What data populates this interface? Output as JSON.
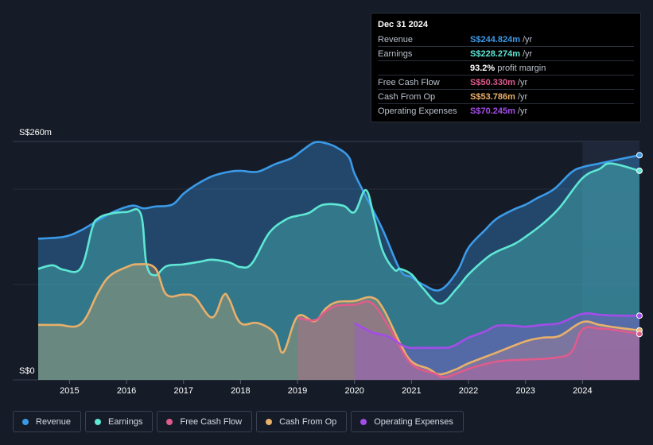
{
  "tooltip": {
    "date": "Dec 31 2024",
    "rows": [
      {
        "label": "Revenue",
        "value": "S$244.824m",
        "unit": "/yr",
        "color": "#3b9ae8"
      },
      {
        "label": "Earnings",
        "value": "S$228.274m",
        "unit": "/yr",
        "color": "#5ee7d4"
      },
      {
        "label": "",
        "value": "93.2%",
        "unit": "profit margin",
        "color": "#ffffff"
      },
      {
        "label": "Free Cash Flow",
        "value": "S$50.330m",
        "unit": "/yr",
        "color": "#e05b8c"
      },
      {
        "label": "Cash From Op",
        "value": "S$53.786m",
        "unit": "/yr",
        "color": "#e8b06a"
      },
      {
        "label": "Operating Expenses",
        "value": "S$70.245m",
        "unit": "/yr",
        "color": "#a34de8"
      }
    ]
  },
  "legend": [
    {
      "label": "Revenue",
      "color": "#3b9ae8"
    },
    {
      "label": "Earnings",
      "color": "#5ee7d4"
    },
    {
      "label": "Free Cash Flow",
      "color": "#e05b8c"
    },
    {
      "label": "Cash From Op",
      "color": "#e8b06a"
    },
    {
      "label": "Operating Expenses",
      "color": "#a34de8"
    }
  ],
  "chart_data": {
    "type": "area",
    "y_top_label": "S$260m",
    "y_bottom_label": "S$0",
    "ylim": [
      0,
      260
    ],
    "xlim": [
      2014.45,
      2025.0
    ],
    "x_ticks": [
      2015,
      2016,
      2017,
      2018,
      2019,
      2020,
      2021,
      2022,
      2023,
      2024
    ],
    "x_tick_labels": [
      "2015",
      "2016",
      "2017",
      "2018",
      "2019",
      "2020",
      "2021",
      "2022",
      "2023",
      "2024"
    ],
    "series": [
      {
        "name": "Revenue",
        "color": "#3b9ae8",
        "fill_opacity": 0.35,
        "start": 2014.45,
        "x": [
          2014.45,
          2014.9,
          2015.2,
          2015.5,
          2015.8,
          2016.1,
          2016.3,
          2016.5,
          2016.8,
          2017.0,
          2017.2,
          2017.5,
          2017.8,
          2018.0,
          2018.3,
          2018.6,
          2018.9,
          2019.1,
          2019.3,
          2019.5,
          2019.7,
          2019.9,
          2020.0,
          2020.2,
          2020.5,
          2020.8,
          2021.0,
          2021.2,
          2021.5,
          2021.8,
          2022.0,
          2022.3,
          2022.5,
          2022.8,
          2023.0,
          2023.2,
          2023.5,
          2023.8,
          2024.0,
          2024.3,
          2024.6,
          2025.0
        ],
        "y": [
          154,
          156,
          163,
          174,
          184,
          190,
          187,
          189,
          191,
          203,
          212,
          222,
          227,
          228,
          227,
          235,
          242,
          251,
          259,
          258,
          253,
          243,
          225,
          200,
          163,
          120,
          112,
          104,
          98,
          118,
          144,
          164,
          176,
          186,
          191,
          198,
          208,
          226,
          232,
          236,
          240,
          245
        ]
      },
      {
        "name": "Earnings",
        "color": "#5ee7d4",
        "fill_opacity": 0.3,
        "start": 2014.45,
        "x": [
          2014.45,
          2014.7,
          2014.9,
          2015.2,
          2015.4,
          2015.5,
          2015.7,
          2016.0,
          2016.25,
          2016.35,
          2016.5,
          2016.7,
          2017.0,
          2017.3,
          2017.5,
          2017.8,
          2018.0,
          2018.2,
          2018.5,
          2018.8,
          2019.0,
          2019.2,
          2019.45,
          2019.8,
          2020.0,
          2020.2,
          2020.35,
          2020.5,
          2020.7,
          2020.8,
          2021.0,
          2021.2,
          2021.5,
          2021.8,
          2022.0,
          2022.3,
          2022.5,
          2022.8,
          2023.0,
          2023.3,
          2023.6,
          2024.0,
          2024.3,
          2024.5,
          2025.0
        ],
        "y": [
          121,
          125,
          120,
          122,
          166,
          176,
          181,
          183,
          181,
          126,
          114,
          124,
          126,
          129,
          131,
          128,
          123,
          127,
          160,
          175,
          179,
          182,
          191,
          190,
          183,
          207,
          175,
          140,
          120,
          121,
          115,
          100,
          83,
          100,
          115,
          132,
          140,
          148,
          156,
          170,
          188,
          220,
          230,
          236,
          228
        ]
      },
      {
        "name": "Cash From Op",
        "color": "#e8b06a",
        "fill_opacity": 0.3,
        "start": 2014.45,
        "x": [
          2014.45,
          2014.8,
          2015.2,
          2015.5,
          2015.7,
          2016.0,
          2016.2,
          2016.5,
          2016.7,
          2017.0,
          2017.2,
          2017.5,
          2017.7,
          2017.8,
          2018.0,
          2018.3,
          2018.6,
          2018.75,
          2019.0,
          2019.3,
          2019.5,
          2019.7,
          2020.0,
          2020.3,
          2020.5,
          2020.8,
          2021.0,
          2021.3,
          2021.5,
          2021.8,
          2022.0,
          2022.5,
          2023.0,
          2023.3,
          2023.6,
          2024.0,
          2024.3,
          2024.6,
          2025.0
        ],
        "y": [
          60,
          60,
          61,
          95,
          113,
          123,
          126,
          122,
          93,
          93,
          90,
          68,
          92,
          88,
          62,
          62,
          51,
          30,
          69,
          64,
          78,
          85,
          86,
          90,
          78,
          40,
          20,
          12,
          6,
          12,
          18,
          30,
          42,
          46,
          48,
          63,
          60,
          57,
          54
        ]
      },
      {
        "name": "Free Cash Flow",
        "color": "#e05b8c",
        "fill_opacity": 0.3,
        "start": 2019.0,
        "x": [
          2019.0,
          2019.3,
          2019.5,
          2019.7,
          2020.0,
          2020.3,
          2020.6,
          2020.9,
          2021.1,
          2021.4,
          2021.6,
          2022.0,
          2022.5,
          2023.0,
          2023.5,
          2023.8,
          2024.0,
          2024.3,
          2024.6,
          2025.0
        ],
        "y": [
          68,
          65,
          75,
          81,
          82,
          84,
          58,
          25,
          13,
          7,
          3,
          12,
          20,
          22,
          24,
          30,
          55,
          56,
          54,
          50
        ]
      },
      {
        "name": "Operating Expenses",
        "color": "#a34de8",
        "fill_opacity": 0.3,
        "start": 2020.0,
        "x": [
          2020.0,
          2020.3,
          2020.6,
          2020.9,
          2021.2,
          2021.5,
          2021.7,
          2022.0,
          2022.3,
          2022.5,
          2022.8,
          2023.0,
          2023.3,
          2023.6,
          2024.0,
          2024.3,
          2024.6,
          2025.0
        ],
        "y": [
          62,
          52,
          47,
          36,
          35,
          35,
          36,
          46,
          53,
          59,
          59,
          58,
          60,
          62,
          72,
          71,
          70,
          70
        ]
      }
    ]
  }
}
